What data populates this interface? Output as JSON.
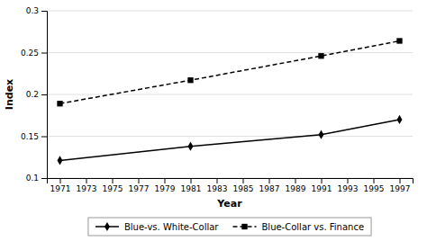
{
  "chart_data": {
    "type": "line",
    "xlabel": "Year",
    "ylabel": "Index",
    "x": [
      1971,
      1981,
      1991,
      1997
    ],
    "series": [
      {
        "name": "Blue-vs. White-Collar",
        "color": "#000000",
        "marker": "diamond",
        "line_style": "solid",
        "values": [
          0.121,
          0.138,
          0.152,
          0.17
        ]
      },
      {
        "name": "Blue-Collar vs. Finance",
        "color": "#000000",
        "marker": "square",
        "line_style": "dashed",
        "values": [
          0.189,
          0.217,
          0.246,
          0.264
        ]
      }
    ],
    "xlim": [
      1970,
      1998
    ],
    "xticks": [
      1971,
      1973,
      1975,
      1977,
      1979,
      1981,
      1983,
      1985,
      1987,
      1989,
      1991,
      1993,
      1995,
      1997
    ],
    "ylim": [
      0.1,
      0.3
    ],
    "yticks": [
      0.1,
      0.15,
      0.2,
      0.25,
      0.3
    ],
    "grid": true,
    "legend": "bottom"
  }
}
